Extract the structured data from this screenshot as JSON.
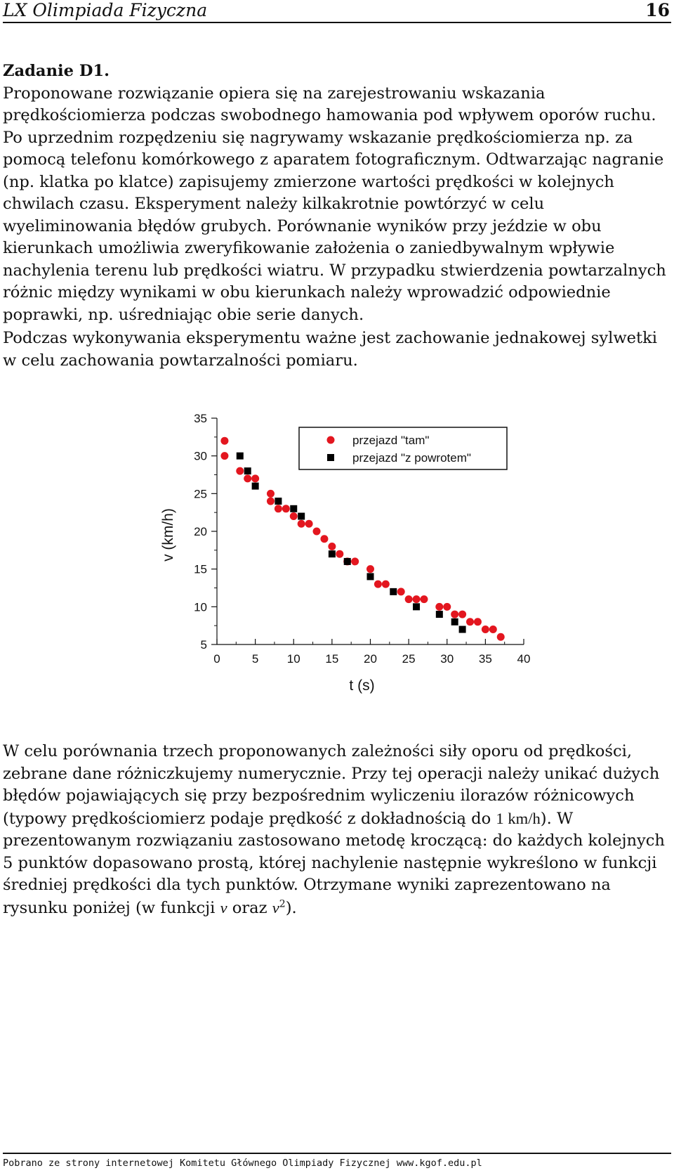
{
  "header": {
    "title": "LX Olimpiada Fizyczna",
    "page": "16"
  },
  "task_heading": "Zadanie D1.",
  "para1": "Proponowane rozwiązanie opiera się na zarejestrowaniu wskazania prędkościomierza podczas swobodnego hamowania pod wpływem oporów ruchu. Po uprzednim rozpędzeniu się nagrywamy wskazanie prędkościomierza np. za pomocą telefonu komórkowego z aparatem fotograficznym. Odtwarzając nagranie (np. klatka po klatce) zapisujemy zmierzone wartości prędkości w kolejnych chwilach czasu. Eksperyment należy kilkakrotnie powtórzyć w celu wyeliminowania błędów grubych. Porównanie wyników przy jeździe w obu kierunkach umożliwia zweryfikowanie założenia o zaniedbywalnym wpływie nachylenia terenu lub prędkości wiatru. W przypadku stwierdzenia powtarzalnych różnic między wynikami w obu kierunkach należy wprowadzić odpowiednie poprawki, np. uśredniając obie serie danych.",
  "para2": "Podczas wykonywania eksperymentu ważne jest zachowanie jednakowej sylwetki w celu zachowania powtarzalności pomiaru.",
  "para3": {
    "a": "W celu porównania trzech proponowanych zależności siły oporu od prędkości, zebrane dane różniczkujemy numerycznie. Przy tej operacji należy unikać dużych błędów pojawiających się przy bezpośrednim wyliczeniu ilorazów różnicowych (typowy prędkościomierz podaje prędkość z dokładnością do ",
    "unit_value": "1 km/h",
    "b": "). W prezentowanym rozwiązaniu zastosowano metodę kroczącą: do każdych kolejnych 5 punktów dopasowano prostą, której nachylenie następnie wykreślono w funkcji średniej prędkości dla tych punktów. Otrzymane wyniki zaprezentowano na rysunku poniżej (w funkcji ",
    "var_v": "v",
    "c": " oraz ",
    "var_v2": "v",
    "exp": "2",
    "d": ")."
  },
  "chart_data": {
    "type": "scatter",
    "xlabel": "t (s)",
    "ylabel": "v (km/h)",
    "xlim": [
      0,
      40
    ],
    "ylim": [
      5,
      35
    ],
    "xticks": [
      "0",
      "5",
      "10",
      "15",
      "20",
      "25",
      "30",
      "35",
      "40"
    ],
    "yticks": [
      "5",
      "10",
      "15",
      "20",
      "25",
      "30",
      "35"
    ],
    "legend_position": "top-right",
    "series": [
      {
        "name": "przejazd \"tam\"",
        "marker": "circle",
        "color": "#e3161f",
        "points": [
          [
            1,
            32
          ],
          [
            1,
            30
          ],
          [
            3,
            28
          ],
          [
            4,
            27
          ],
          [
            5,
            27
          ],
          [
            7,
            25
          ],
          [
            7,
            24
          ],
          [
            8,
            23
          ],
          [
            9,
            23
          ],
          [
            10,
            22
          ],
          [
            11,
            21
          ],
          [
            12,
            21
          ],
          [
            13,
            20
          ],
          [
            14,
            19
          ],
          [
            15,
            18
          ],
          [
            16,
            17
          ],
          [
            17,
            16
          ],
          [
            18,
            16
          ],
          [
            20,
            15
          ],
          [
            21,
            13
          ],
          [
            22,
            13
          ],
          [
            24,
            12
          ],
          [
            25,
            11
          ],
          [
            26,
            11
          ],
          [
            27,
            11
          ],
          [
            29,
            10
          ],
          [
            30,
            10
          ],
          [
            31,
            9
          ],
          [
            32,
            9
          ],
          [
            33,
            8
          ],
          [
            34,
            8
          ],
          [
            35,
            7
          ],
          [
            36,
            7
          ],
          [
            37,
            6
          ]
        ]
      },
      {
        "name": "przejazd \"z powrotem\"",
        "marker": "square",
        "color": "#000000",
        "points": [
          [
            3,
            30
          ],
          [
            4,
            28
          ],
          [
            5,
            26
          ],
          [
            8,
            24
          ],
          [
            10,
            23
          ],
          [
            11,
            22
          ],
          [
            15,
            17
          ],
          [
            17,
            16
          ],
          [
            20,
            14
          ],
          [
            23,
            12
          ],
          [
            26,
            10
          ],
          [
            29,
            9
          ],
          [
            31,
            8
          ],
          [
            32,
            7
          ]
        ]
      }
    ]
  },
  "footer": "Pobrano ze strony internetowej Komitetu Głównego Olimpiady Fizycznej www.kgof.edu.pl"
}
